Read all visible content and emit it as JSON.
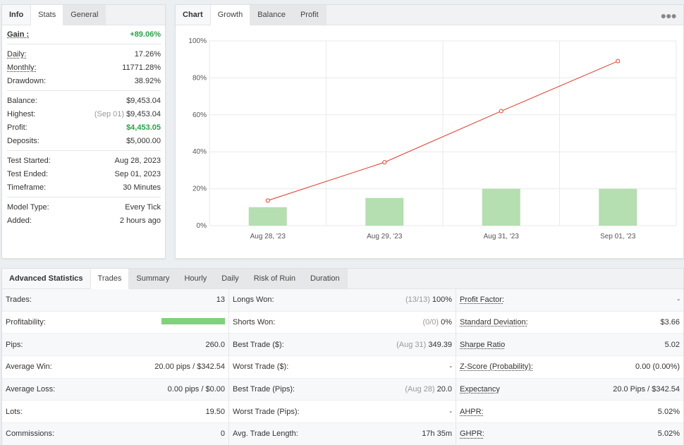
{
  "info_panel": {
    "tabs": [
      "Info",
      "Stats",
      "General"
    ],
    "gain": {
      "label": "Gain :",
      "value": "+89.06%"
    },
    "group1": [
      {
        "label": "Daily:",
        "value": "17.26%",
        "underline": true
      },
      {
        "label": "Monthly:",
        "value": "11771.28%",
        "underline": true
      },
      {
        "label": "Drawdown:",
        "value": "38.92%",
        "underline": false
      }
    ],
    "group2": [
      {
        "label": "Balance:",
        "value": "$9,453.04",
        "sub": ""
      },
      {
        "label": "Highest:",
        "value": "$9,453.04",
        "sub": "(Sep 01)"
      },
      {
        "label": "Profit:",
        "value": "$4,453.05",
        "sub": "",
        "green": true
      },
      {
        "label": "Deposits:",
        "value": "$5,000.00",
        "sub": ""
      }
    ],
    "group3": [
      {
        "label": "Test Started:",
        "value": "Aug 28, 2023"
      },
      {
        "label": "Test Ended:",
        "value": "Sep 01, 2023"
      },
      {
        "label": "Timeframe:",
        "value": "30 Minutes"
      }
    ],
    "group4": [
      {
        "label": "Model Type:",
        "value": "Every Tick"
      },
      {
        "label": "Added:",
        "value": "2 hours ago"
      }
    ]
  },
  "chart_panel": {
    "tabs": [
      "Chart",
      "Growth",
      "Balance",
      "Profit"
    ],
    "more_icon": "ellipsis-icon"
  },
  "chart_data": {
    "type": "bar",
    "categories": [
      "Aug 28, '23",
      "Aug 29, '23",
      "Aug 31, '23",
      "Sep 01, '23"
    ],
    "series": [
      {
        "type": "bar",
        "values": [
          10,
          15,
          20,
          20
        ],
        "color": "#b5deb1"
      },
      {
        "type": "line",
        "values": [
          13.6,
          34.3,
          62.0,
          89.06
        ],
        "color": "#e0392b"
      }
    ],
    "y_ticks": [
      "0%",
      "20%",
      "40%",
      "60%",
      "80%",
      "100%"
    ],
    "ylim": [
      0,
      100
    ],
    "grid": true
  },
  "stats_panel": {
    "tabs": [
      "Advanced Statistics",
      "Trades",
      "Summary",
      "Hourly",
      "Daily",
      "Risk of Ruin",
      "Duration"
    ],
    "col1": [
      {
        "label": "Trades:",
        "value": "13"
      },
      {
        "label": "Profitability:",
        "value": "",
        "bar": 1.0
      },
      {
        "label": "Pips:",
        "value": "260.0"
      },
      {
        "label": "Average Win:",
        "value": "20.00 pips / $342.54"
      },
      {
        "label": "Average Loss:",
        "value": "0.00 pips / $0.00"
      },
      {
        "label": "Lots:",
        "value": "19.50"
      },
      {
        "label": "Commissions:",
        "value": "0"
      }
    ],
    "col2": [
      {
        "label": "Longs Won:",
        "value": "100%",
        "sub": "(13/13)"
      },
      {
        "label": "Shorts Won:",
        "value": "0%",
        "sub": "(0/0)"
      },
      {
        "label": "Best Trade ($):",
        "value": "349.39",
        "sub": "(Aug 31)"
      },
      {
        "label": "Worst Trade ($):",
        "value": "-",
        "sub": ""
      },
      {
        "label": "Best Trade (Pips):",
        "value": "20.0",
        "sub": "(Aug 28)"
      },
      {
        "label": "Worst Trade (Pips):",
        "value": "-",
        "sub": ""
      },
      {
        "label": "Avg. Trade Length:",
        "value": "17h 35m",
        "sub": ""
      }
    ],
    "col3": [
      {
        "label": "Profit Factor:",
        "value": "-"
      },
      {
        "label": "Standard Deviation:",
        "value": "$3.66"
      },
      {
        "label": "Sharpe Ratio",
        "value": "5.02"
      },
      {
        "label": "Z-Score (Probability):",
        "value": "0.00 (0.00%)"
      },
      {
        "label": "Expectancy",
        "value": "20.0 Pips / $342.54"
      },
      {
        "label": "AHPR:",
        "value": "5.02%"
      },
      {
        "label": "GHPR:",
        "value": "5.02%"
      }
    ]
  }
}
